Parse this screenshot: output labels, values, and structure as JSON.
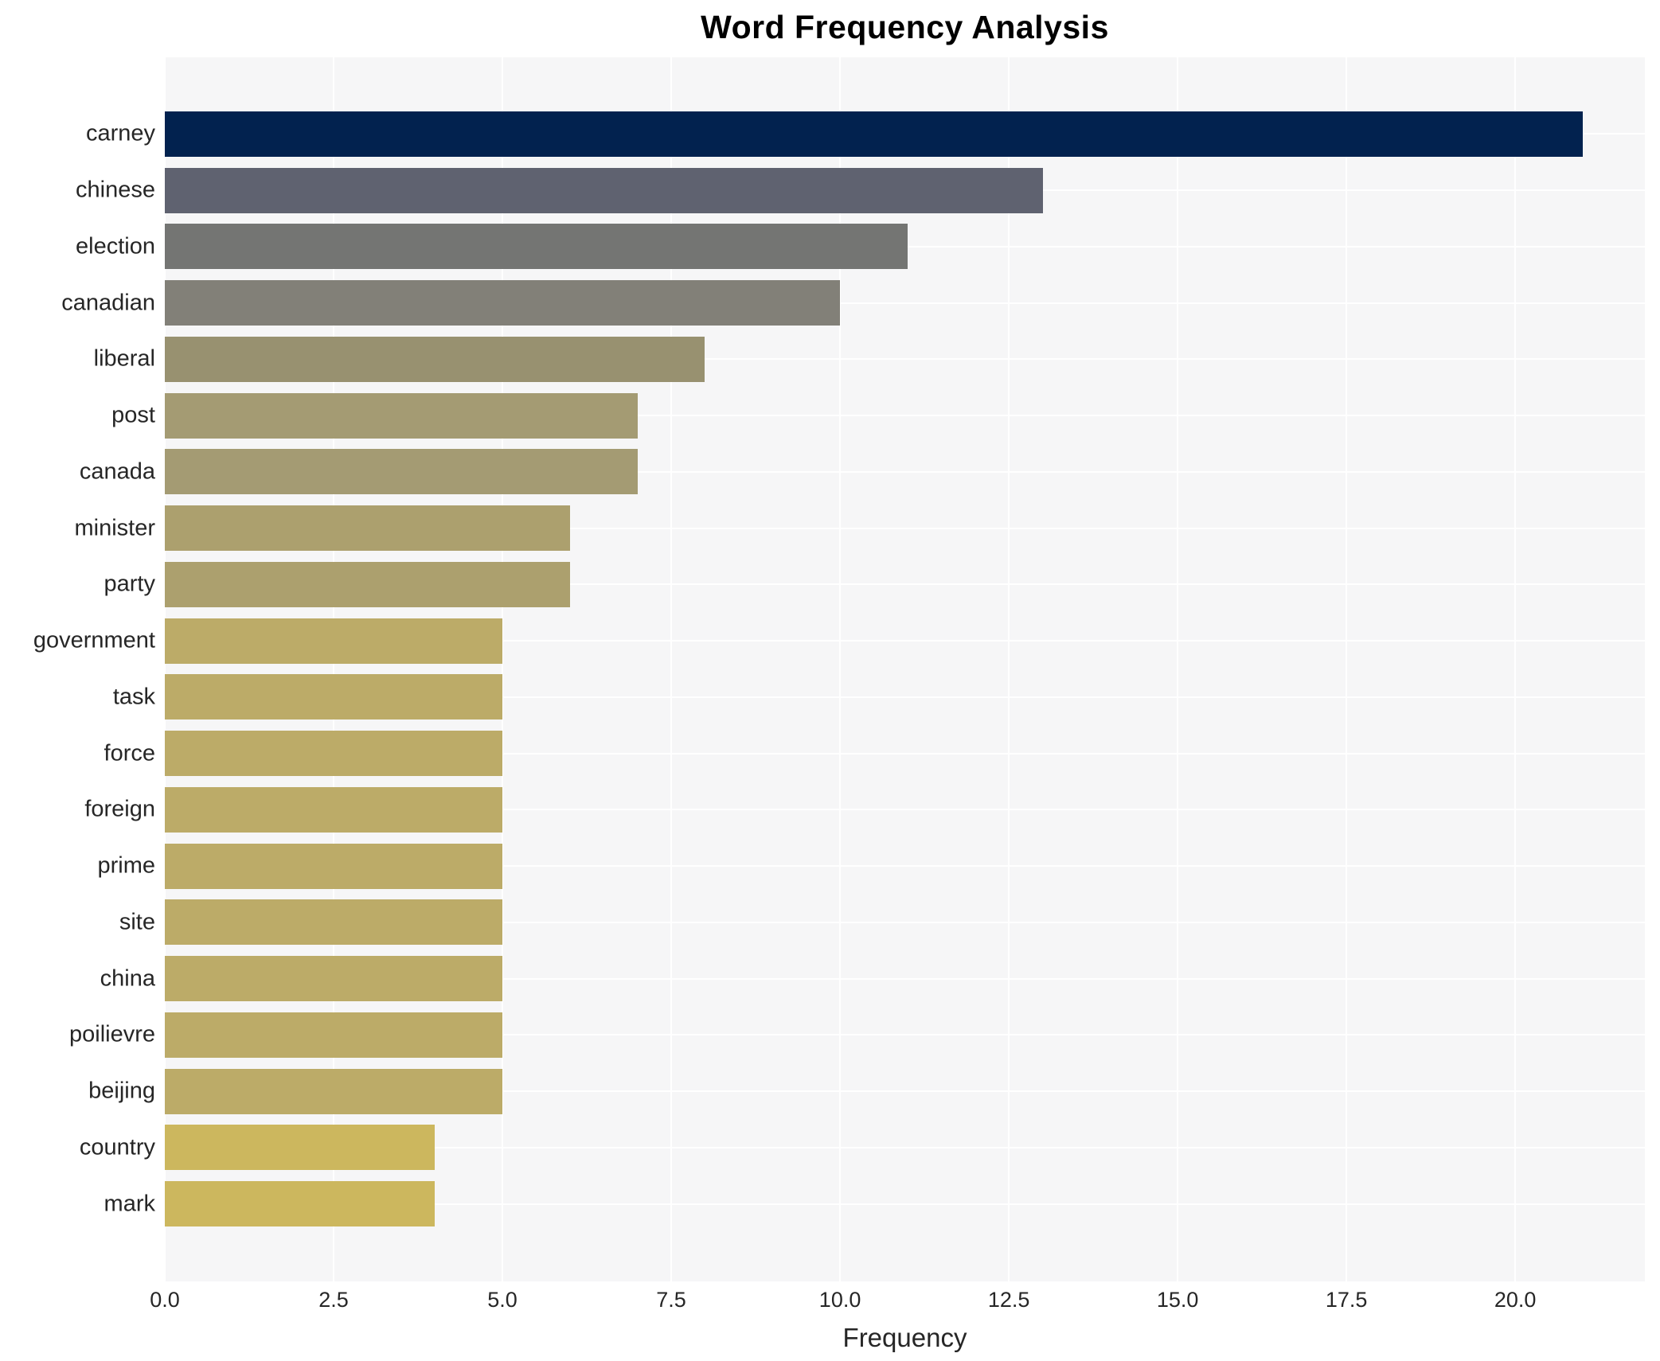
{
  "title": "Word Frequency Analysis",
  "chart_data": {
    "type": "bar",
    "orientation": "horizontal",
    "title": "Word Frequency Analysis",
    "xlabel": "Frequency",
    "ylabel": "",
    "categories": [
      "carney",
      "chinese",
      "election",
      "canadian",
      "liberal",
      "post",
      "canada",
      "minister",
      "party",
      "government",
      "task",
      "force",
      "foreign",
      "prime",
      "site",
      "china",
      "poilievre",
      "beijing",
      "country",
      "mark"
    ],
    "values": [
      21,
      13,
      11,
      10,
      8,
      7,
      7,
      6,
      6,
      5,
      5,
      5,
      5,
      5,
      5,
      5,
      5,
      5,
      4,
      4
    ],
    "bar_colors": [
      "#02224f",
      "#5f6270",
      "#747573",
      "#828078",
      "#989170",
      "#a49b73",
      "#a49b73",
      "#aca06e",
      "#aca06e",
      "#bcab68",
      "#bcab68",
      "#bcab68",
      "#bcab68",
      "#bcab68",
      "#bcab68",
      "#bcab68",
      "#bcab68",
      "#bcab68",
      "#ccb75e",
      "#ccb75e"
    ],
    "xlim": [
      0,
      21.92
    ],
    "xticks": [
      0,
      2.5,
      5,
      7.5,
      10,
      12.5,
      15,
      17.5,
      20
    ],
    "xtick_labels": [
      "0.0",
      "2.5",
      "5.0",
      "7.5",
      "10.0",
      "12.5",
      "15.0",
      "17.5",
      "20.0"
    ],
    "grid": true,
    "legend_position": "none",
    "plot_background": "#f6f6f7",
    "grid_color": "#ffffff",
    "text_color": "#262626",
    "title_color": "#000000"
  }
}
